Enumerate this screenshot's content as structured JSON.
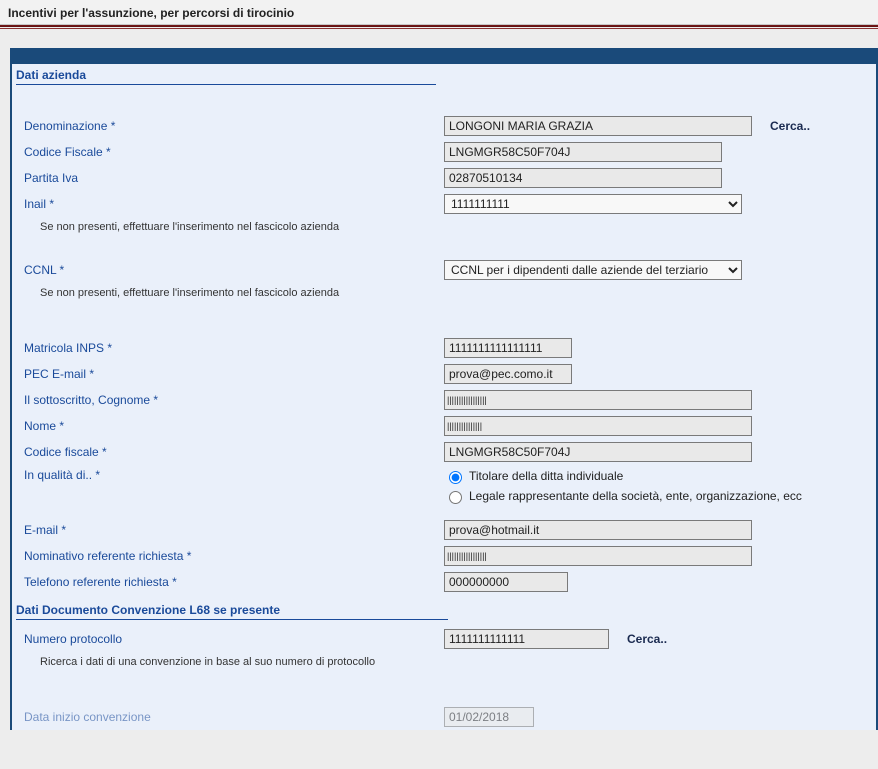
{
  "page_title": "Incentivi per l'assunzione, per percorsi di tirocinio",
  "section_azienda": "Dati azienda",
  "section_doc": "Dati Documento Convenzione L68 se presente",
  "labels": {
    "denominazione": "Denominazione *",
    "codice_fiscale": "Codice Fiscale *",
    "partita_iva": "Partita Iva",
    "inail": "Inail *",
    "ccnl": "CCNL *",
    "matricola": "Matricola INPS *",
    "pec": "PEC E-mail *",
    "cognome": "Il sottoscritto, Cognome *",
    "nome": "Nome *",
    "cf_persona": "Codice fiscale *",
    "qualita": "In qualità di.. *",
    "email": "E-mail *",
    "nominativo_ref": "Nominativo referente richiesta *",
    "telefono_ref": "Telefono referente richiesta *",
    "numero_protocollo": "Numero protocollo",
    "data_inizio": "Data inizio convenzione"
  },
  "hints": {
    "fascicolo1": "Se non presenti, effettuare l'inserimento nel fascicolo azienda",
    "fascicolo2": "Se non presenti, effettuare l'inserimento nel fascicolo azienda",
    "protocollo": "Ricerca i dati di una convenzione in base al suo numero di protocollo"
  },
  "values": {
    "denominazione": "LONGONI MARIA GRAZIA",
    "codice_fiscale": "LNGMGR58C50F704J",
    "partita_iva": "02870510134",
    "inail": "1111111111",
    "ccnl": "CCNL per i dipendenti dalle aziende del terziario",
    "matricola": "1111111111111111",
    "pec": "prova@pec.como.it",
    "cognome": "|||||||||||||||||",
    "nome": "|||||||||||||||",
    "cf_persona": "LNGMGR58C50F704J",
    "email": "prova@hotmail.it",
    "nominativo_ref": "|||||||||||||||||",
    "telefono_ref": "000000000",
    "numero_protocollo": "1111111111111",
    "data_inizio": "01/02/2018"
  },
  "radio": {
    "titolare": "Titolare della ditta individuale",
    "legale": "Legale rappresentante della società, ente, organizzazione, ecc"
  },
  "actions": {
    "cerca": "Cerca.."
  },
  "widths": {
    "denominazione": 308,
    "codice_fiscale": 278,
    "partita_iva": 278,
    "inail": 298,
    "ccnl": 298,
    "matricola": 128,
    "pec": 128,
    "cognome": 308,
    "nome": 308,
    "cf_persona": 308,
    "email": 308,
    "nominativo_ref": 308,
    "telefono_ref": 124,
    "numero_protocollo": 165,
    "data_inizio": 90
  }
}
